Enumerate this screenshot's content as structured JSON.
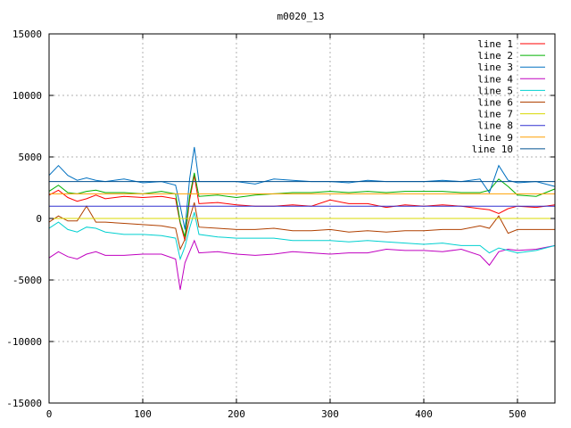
{
  "chart_data": {
    "type": "line",
    "title": "m0020_13",
    "xlabel": "",
    "ylabel": "",
    "xlim": [
      0,
      540
    ],
    "ylim": [
      -15000,
      15000
    ],
    "x_ticks": [
      0,
      100,
      200,
      300,
      400,
      500
    ],
    "y_ticks": [
      -15000,
      -10000,
      -5000,
      0,
      5000,
      10000,
      15000
    ],
    "grid": true,
    "legend_position": "top-right",
    "series": [
      {
        "name": "line 1",
        "color": "#ff0000",
        "x": [
          0,
          10,
          20,
          30,
          40,
          50,
          60,
          80,
          100,
          120,
          135,
          140,
          145,
          150,
          155,
          160,
          180,
          200,
          220,
          240,
          260,
          280,
          300,
          320,
          340,
          360,
          380,
          400,
          420,
          440,
          460,
          470,
          480,
          490,
          500,
          520,
          540
        ],
        "y": [
          1900,
          2300,
          1700,
          1400,
          1600,
          1900,
          1600,
          1800,
          1700,
          1800,
          1600,
          -400,
          -1800,
          1500,
          3500,
          1200,
          1300,
          1100,
          1000,
          1000,
          1100,
          1000,
          1500,
          1200,
          1200,
          900,
          1100,
          1000,
          1100,
          1000,
          800,
          700,
          400,
          800,
          1000,
          900,
          1100
        ]
      },
      {
        "name": "line 2",
        "color": "#00b000",
        "x": [
          0,
          10,
          20,
          30,
          40,
          50,
          60,
          80,
          100,
          120,
          135,
          140,
          145,
          150,
          155,
          160,
          180,
          200,
          220,
          240,
          260,
          280,
          300,
          320,
          340,
          360,
          380,
          400,
          420,
          440,
          460,
          470,
          480,
          490,
          500,
          520,
          540
        ],
        "y": [
          2200,
          2700,
          2100,
          2000,
          2200,
          2300,
          2100,
          2100,
          2000,
          2200,
          2000,
          -300,
          -1500,
          1800,
          3700,
          1800,
          1900,
          1700,
          1900,
          2000,
          2100,
          2100,
          2200,
          2100,
          2200,
          2100,
          2200,
          2200,
          2200,
          2100,
          2100,
          2300,
          3200,
          2600,
          1900,
          1800,
          2400
        ]
      },
      {
        "name": "line 3",
        "color": "#0070c0",
        "x": [
          0,
          10,
          20,
          30,
          40,
          50,
          60,
          80,
          100,
          120,
          135,
          140,
          145,
          150,
          155,
          160,
          180,
          200,
          220,
          240,
          260,
          280,
          300,
          320,
          340,
          360,
          380,
          400,
          420,
          440,
          460,
          470,
          480,
          490,
          500,
          520,
          540
        ],
        "y": [
          3500,
          4300,
          3500,
          3100,
          3300,
          3100,
          3000,
          3200,
          2900,
          3000,
          2700,
          1000,
          -900,
          3200,
          5800,
          3000,
          3000,
          3000,
          2800,
          3200,
          3100,
          3000,
          3000,
          2900,
          3100,
          3000,
          3000,
          3000,
          3100,
          3000,
          3200,
          2100,
          4300,
          3100,
          2900,
          3000,
          2600
        ]
      },
      {
        "name": "line 4",
        "color": "#c000c0",
        "x": [
          0,
          10,
          20,
          30,
          40,
          50,
          60,
          80,
          100,
          120,
          135,
          140,
          145,
          150,
          155,
          160,
          180,
          200,
          220,
          240,
          260,
          280,
          300,
          320,
          340,
          360,
          380,
          400,
          420,
          440,
          460,
          470,
          480,
          490,
          500,
          520,
          540
        ],
        "y": [
          -3200,
          -2700,
          -3100,
          -3300,
          -2900,
          -2700,
          -3000,
          -3000,
          -2900,
          -2900,
          -3300,
          -5800,
          -3600,
          -2700,
          -1800,
          -2800,
          -2700,
          -2900,
          -3000,
          -2900,
          -2700,
          -2800,
          -2900,
          -2800,
          -2800,
          -2500,
          -2600,
          -2600,
          -2700,
          -2500,
          -3000,
          -3800,
          -2700,
          -2500,
          -2600,
          -2500,
          -2200
        ]
      },
      {
        "name": "line 5",
        "color": "#00d0d0",
        "x": [
          0,
          10,
          20,
          30,
          40,
          50,
          60,
          80,
          100,
          120,
          135,
          140,
          145,
          150,
          155,
          160,
          180,
          200,
          220,
          240,
          260,
          280,
          300,
          320,
          340,
          360,
          380,
          400,
          420,
          440,
          460,
          470,
          480,
          490,
          500,
          520,
          540
        ],
        "y": [
          -800,
          -300,
          -900,
          -1100,
          -700,
          -800,
          -1100,
          -1300,
          -1300,
          -1400,
          -1600,
          -3300,
          -2300,
          -800,
          500,
          -1300,
          -1500,
          -1600,
          -1600,
          -1600,
          -1800,
          -1800,
          -1800,
          -1900,
          -1800,
          -1900,
          -2000,
          -2100,
          -2000,
          -2200,
          -2200,
          -2800,
          -2400,
          -2600,
          -2800,
          -2600,
          -2200
        ]
      },
      {
        "name": "line 6",
        "color": "#b04000",
        "x": [
          0,
          10,
          20,
          30,
          40,
          50,
          60,
          80,
          100,
          120,
          135,
          140,
          145,
          150,
          155,
          160,
          180,
          200,
          220,
          240,
          260,
          280,
          300,
          320,
          340,
          360,
          380,
          400,
          420,
          440,
          460,
          470,
          480,
          490,
          500,
          520,
          540
        ],
        "y": [
          -300,
          200,
          -200,
          -200,
          1000,
          -300,
          -300,
          -400,
          -500,
          -600,
          -800,
          -2500,
          -1700,
          0,
          1300,
          -700,
          -800,
          -900,
          -900,
          -800,
          -1000,
          -1000,
          -900,
          -1100,
          -1000,
          -1100,
          -1000,
          -1000,
          -900,
          -900,
          -600,
          -800,
          200,
          -1200,
          -900,
          -900,
          -900
        ]
      },
      {
        "name": "line 7",
        "color": "#d8d800",
        "x": [
          0,
          540
        ],
        "y": [
          0,
          0
        ]
      },
      {
        "name": "line 8",
        "color": "#3030d0",
        "x": [
          0,
          540
        ],
        "y": [
          1000,
          1000
        ]
      },
      {
        "name": "line 9",
        "color": "#ffa000",
        "x": [
          0,
          540
        ],
        "y": [
          2000,
          2000
        ]
      },
      {
        "name": "line 10",
        "color": "#005090",
        "x": [
          0,
          540
        ],
        "y": [
          3000,
          3000
        ]
      }
    ]
  }
}
